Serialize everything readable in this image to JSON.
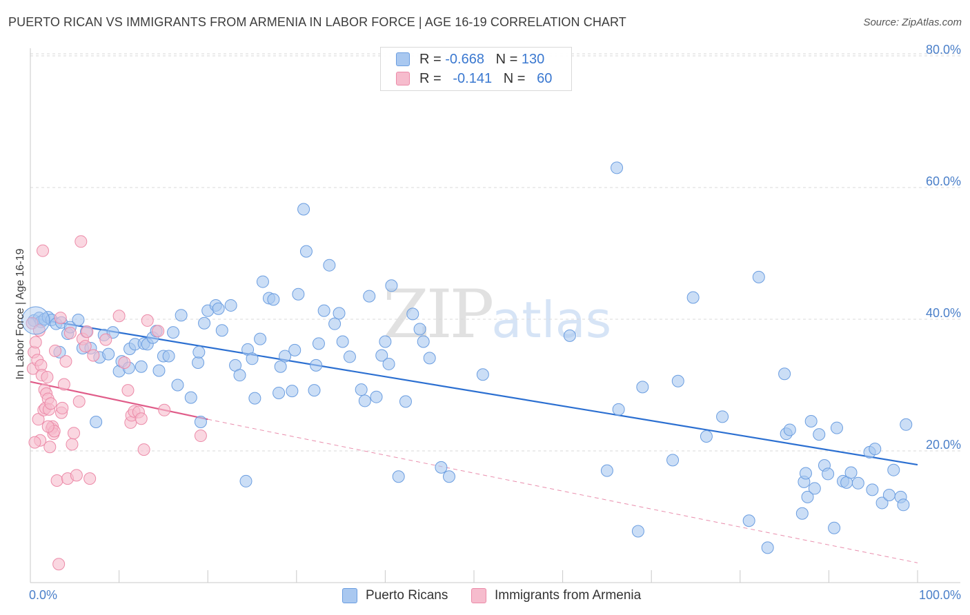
{
  "title": "PUERTO RICAN VS IMMIGRANTS FROM ARMENIA IN LABOR FORCE | AGE 16-19 CORRELATION CHART",
  "source": "Source: ZipAtlas.com",
  "watermark": {
    "zip": "ZIP",
    "atlas": "atlas"
  },
  "legend": {
    "r_label": "R =",
    "n_label": "N =",
    "series1": {
      "r": "-0.668",
      "n": "130"
    },
    "series2": {
      "r": "-0.141",
      "n": "60"
    }
  },
  "colors": {
    "blue_fill": "#a9c8f0",
    "blue_stroke": "#6a9de0",
    "blue_line": "#2b6fd1",
    "pink_fill": "#f6bccd",
    "pink_stroke": "#ec8aa8",
    "pink_line": "#e05c89",
    "grid": "#d9d9d9",
    "axis_text": "#4a7fc9"
  },
  "chart_data": {
    "type": "scatter",
    "title": "PUERTO RICAN VS IMMIGRANTS FROM ARMENIA IN LABOR FORCE | AGE 16-19 CORRELATION CHART",
    "xlabel": "",
    "ylabel": "In Labor Force | Age 16-19",
    "xlim": [
      0,
      100
    ],
    "ylim": [
      0,
      85
    ],
    "x_tick_labels": [
      "0.0%",
      "100.0%"
    ],
    "y_ticks": [
      20,
      40,
      60,
      80
    ],
    "y_tick_labels": [
      "20.0%",
      "40.0%",
      "60.0%",
      "80.0%"
    ],
    "grid": true,
    "legend_position": "top-center",
    "series": [
      {
        "name": "Puerto Ricans",
        "r": -0.668,
        "n": 130,
        "trend": {
          "x0": 0,
          "y0": 40.2,
          "x1": 100,
          "y1": 17.9
        },
        "points": [
          [
            0.4,
            39.8
          ],
          [
            1.0,
            40.2
          ],
          [
            1.2,
            39.6
          ],
          [
            1.6,
            40.0
          ],
          [
            2.0,
            40.3
          ],
          [
            2.4,
            39.9
          ],
          [
            2.9,
            39.3
          ],
          [
            3.3,
            35.0
          ],
          [
            3.5,
            39.5
          ],
          [
            4.2,
            37.8
          ],
          [
            4.5,
            38.8
          ],
          [
            5.4,
            39.9
          ],
          [
            5.9,
            35.6
          ],
          [
            6.3,
            38.1
          ],
          [
            6.8,
            35.6
          ],
          [
            7.4,
            24.4
          ],
          [
            7.8,
            34.2
          ],
          [
            8.3,
            37.6
          ],
          [
            8.8,
            34.7
          ],
          [
            9.3,
            38.0
          ],
          [
            10.0,
            32.1
          ],
          [
            10.3,
            33.6
          ],
          [
            11.1,
            32.6
          ],
          [
            11.2,
            35.5
          ],
          [
            11.8,
            36.2
          ],
          [
            12.5,
            32.8
          ],
          [
            12.8,
            36.3
          ],
          [
            13.2,
            36.2
          ],
          [
            13.8,
            37.2
          ],
          [
            14.2,
            38.2
          ],
          [
            14.5,
            32.2
          ],
          [
            15.0,
            34.4
          ],
          [
            15.6,
            34.4
          ],
          [
            16.1,
            38.0
          ],
          [
            16.6,
            30.0
          ],
          [
            17.0,
            40.6
          ],
          [
            18.1,
            28.1
          ],
          [
            18.9,
            33.4
          ],
          [
            19.0,
            35.0
          ],
          [
            19.2,
            24.4
          ],
          [
            19.6,
            39.4
          ],
          [
            20.0,
            41.3
          ],
          [
            20.9,
            42.1
          ],
          [
            21.2,
            41.6
          ],
          [
            21.6,
            38.3
          ],
          [
            22.6,
            42.1
          ],
          [
            23.1,
            33.0
          ],
          [
            23.6,
            31.5
          ],
          [
            24.3,
            15.4
          ],
          [
            24.5,
            35.4
          ],
          [
            25.0,
            34.0
          ],
          [
            25.3,
            28.0
          ],
          [
            25.9,
            37.0
          ],
          [
            26.2,
            45.7
          ],
          [
            26.9,
            43.2
          ],
          [
            27.4,
            43.0
          ],
          [
            28.0,
            28.8
          ],
          [
            28.2,
            32.8
          ],
          [
            28.7,
            34.4
          ],
          [
            29.5,
            29.1
          ],
          [
            29.8,
            35.3
          ],
          [
            30.2,
            43.8
          ],
          [
            30.8,
            56.7
          ],
          [
            31.1,
            50.3
          ],
          [
            32.0,
            29.2
          ],
          [
            32.2,
            33.0
          ],
          [
            32.5,
            36.3
          ],
          [
            33.1,
            41.3
          ],
          [
            33.7,
            48.2
          ],
          [
            34.3,
            39.3
          ],
          [
            34.8,
            40.9
          ],
          [
            35.2,
            36.6
          ],
          [
            36.0,
            34.3
          ],
          [
            37.3,
            29.3
          ],
          [
            37.7,
            27.6
          ],
          [
            38.2,
            43.5
          ],
          [
            39.0,
            28.2
          ],
          [
            39.6,
            34.5
          ],
          [
            40.0,
            36.6
          ],
          [
            40.4,
            33.2
          ],
          [
            40.7,
            45.1
          ],
          [
            41.5,
            16.1
          ],
          [
            42.3,
            27.5
          ],
          [
            43.1,
            40.8
          ],
          [
            43.9,
            38.5
          ],
          [
            44.3,
            36.6
          ],
          [
            45.0,
            34.1
          ],
          [
            46.3,
            17.5
          ],
          [
            47.2,
            16.1
          ],
          [
            51.0,
            31.6
          ],
          [
            60.8,
            37.5
          ],
          [
            65.0,
            17.0
          ],
          [
            66.1,
            63.0
          ],
          [
            66.3,
            26.3
          ],
          [
            68.5,
            7.8
          ],
          [
            69.0,
            29.7
          ],
          [
            72.4,
            18.6
          ],
          [
            73.0,
            30.6
          ],
          [
            74.7,
            43.3
          ],
          [
            76.2,
            22.2
          ],
          [
            78.0,
            25.2
          ],
          [
            81.0,
            9.4
          ],
          [
            82.1,
            46.4
          ],
          [
            83.1,
            5.3
          ],
          [
            85.0,
            31.7
          ],
          [
            85.2,
            22.6
          ],
          [
            85.6,
            23.2
          ],
          [
            87.0,
            10.5
          ],
          [
            87.2,
            15.3
          ],
          [
            87.4,
            16.6
          ],
          [
            87.6,
            13.0
          ],
          [
            88.0,
            24.5
          ],
          [
            88.4,
            14.3
          ],
          [
            88.9,
            22.5
          ],
          [
            89.5,
            17.8
          ],
          [
            89.9,
            16.5
          ],
          [
            90.6,
            8.3
          ],
          [
            90.9,
            23.5
          ],
          [
            91.6,
            15.4
          ],
          [
            92.0,
            15.2
          ],
          [
            92.5,
            16.7
          ],
          [
            93.3,
            15.1
          ],
          [
            94.6,
            19.8
          ],
          [
            94.9,
            14.1
          ],
          [
            95.2,
            20.3
          ],
          [
            96.0,
            12.1
          ],
          [
            96.8,
            13.3
          ],
          [
            97.3,
            17.1
          ],
          [
            98.1,
            13.0
          ],
          [
            98.4,
            11.8
          ],
          [
            98.7,
            24.0
          ]
        ]
      },
      {
        "name": "Immigrants from Armenia",
        "r": -0.141,
        "n": 60,
        "trend": {
          "x0": 0,
          "y0": 30.5,
          "x1": 20,
          "y1": 24.8
        },
        "trend_extended": {
          "x0": 20,
          "y0": 24.8,
          "x1": 100,
          "y1": 3.0
        },
        "points": [
          [
            0.2,
            39.4
          ],
          [
            0.3,
            32.5
          ],
          [
            0.4,
            35.0
          ],
          [
            0.6,
            36.5
          ],
          [
            0.8,
            33.8
          ],
          [
            0.9,
            24.8
          ],
          [
            1.0,
            38.3
          ],
          [
            1.1,
            21.6
          ],
          [
            1.2,
            33.0
          ],
          [
            1.3,
            31.5
          ],
          [
            1.4,
            50.4
          ],
          [
            1.5,
            26.2
          ],
          [
            1.6,
            29.3
          ],
          [
            1.7,
            26.5
          ],
          [
            1.8,
            28.7
          ],
          [
            1.9,
            31.2
          ],
          [
            2.0,
            27.9
          ],
          [
            2.1,
            26.3
          ],
          [
            2.2,
            20.6
          ],
          [
            2.3,
            27.2
          ],
          [
            2.4,
            23.4
          ],
          [
            2.5,
            23.7
          ],
          [
            2.6,
            22.6
          ],
          [
            2.7,
            23.0
          ],
          [
            2.8,
            35.2
          ],
          [
            3.0,
            15.5
          ],
          [
            3.2,
            2.8
          ],
          [
            3.4,
            40.2
          ],
          [
            3.5,
            25.8
          ],
          [
            3.6,
            26.5
          ],
          [
            3.8,
            30.1
          ],
          [
            4.0,
            33.6
          ],
          [
            4.2,
            15.8
          ],
          [
            4.5,
            37.9
          ],
          [
            4.7,
            21.0
          ],
          [
            4.9,
            22.7
          ],
          [
            5.2,
            16.3
          ],
          [
            5.5,
            27.5
          ],
          [
            5.7,
            51.8
          ],
          [
            5.9,
            37.0
          ],
          [
            6.2,
            35.9
          ],
          [
            6.4,
            38.1
          ],
          [
            6.7,
            15.8
          ],
          [
            7.1,
            34.5
          ],
          [
            8.5,
            36.9
          ],
          [
            10.0,
            40.5
          ],
          [
            10.6,
            33.4
          ],
          [
            11.0,
            29.2
          ],
          [
            11.3,
            24.3
          ],
          [
            11.4,
            25.4
          ],
          [
            11.7,
            26.0
          ],
          [
            12.2,
            25.9
          ],
          [
            12.5,
            24.9
          ],
          [
            12.8,
            20.2
          ],
          [
            13.2,
            39.8
          ],
          [
            14.4,
            38.2
          ],
          [
            15.1,
            26.2
          ],
          [
            19.2,
            22.3
          ],
          [
            0.5,
            21.3
          ],
          [
            2.0,
            23.7
          ]
        ]
      }
    ]
  },
  "bottom_legend": {
    "item1": "Puerto Ricans",
    "item2": "Immigrants from Armenia"
  }
}
